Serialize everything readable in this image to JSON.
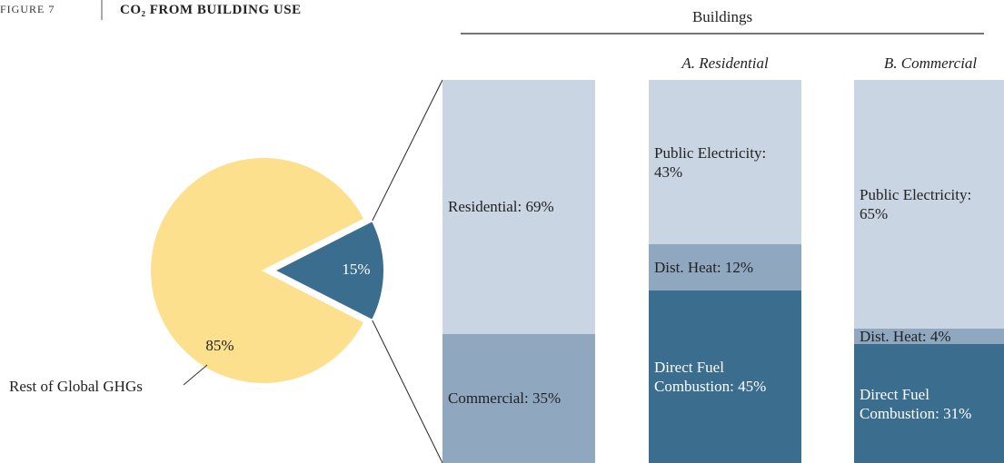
{
  "figure_label": "FIGURE 7",
  "title": "CO₂ FROM BUILDING USE",
  "chart_data": [
    {
      "type": "pie",
      "values": [
        85,
        15
      ],
      "value_labels": [
        "85%",
        "15%"
      ],
      "colors": [
        "#fde08e",
        "#3a6d8e"
      ],
      "annotation": "Rest of Global GHGs"
    },
    {
      "type": "stacked_bar",
      "title": "Buildings",
      "categories": [
        null,
        "A. Residential",
        "B. Commercial"
      ],
      "bars": [
        {
          "values": [
            69,
            35
          ],
          "value_labels": [
            "Residential: 69%",
            "Commercial: 35%"
          ],
          "colors": [
            "#c9d5e3",
            "#8fa8c0"
          ]
        },
        {
          "values": [
            43,
            12,
            45
          ],
          "value_labels": [
            "Public Electricity: 43%",
            "Dist. Heat: 12%",
            "Direct Fuel Combustion: 45%"
          ],
          "colors": [
            "#c9d5e3",
            "#8fa8c0",
            "#3a6d8e"
          ]
        },
        {
          "values": [
            65,
            4,
            31
          ],
          "value_labels": [
            "Public Electricity: 65%",
            "Dist. Heat: 4%",
            "Direct Fuel Combustion: 31%"
          ],
          "colors": [
            "#c9d5e3",
            "#8fa8c0",
            "#3a6d8e"
          ]
        }
      ]
    }
  ]
}
